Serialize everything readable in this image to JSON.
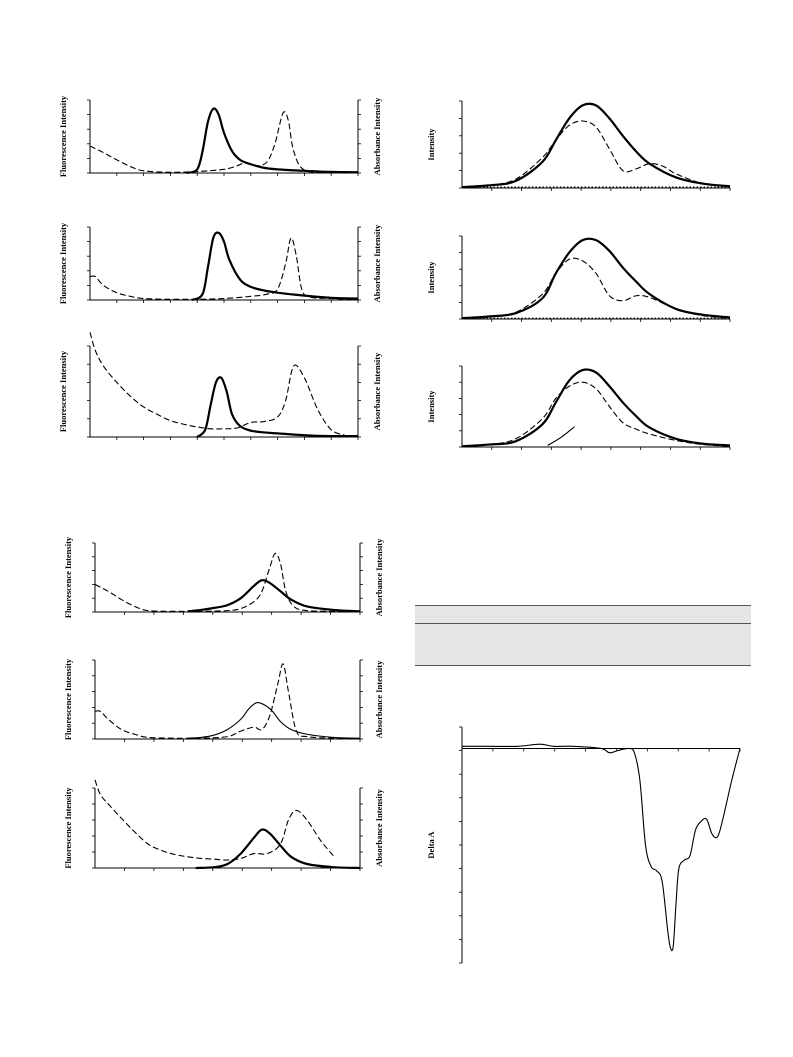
{
  "labels": {
    "fluorescence": "Fluorescence Intensity",
    "absorbance": "Absorbance Intensity",
    "intensity": "Intensity",
    "delta_a": "Delta A"
  },
  "chart_data": [
    {
      "type": "line",
      "id": "left-1",
      "ylabel_left": "Fluorescence Intensity",
      "ylabel_right": "Absorbance Intensity",
      "xlim": [
        0,
        1
      ],
      "ylim": [
        0,
        1
      ],
      "series": [
        {
          "style": "solid",
          "x": [
            0.36,
            0.4,
            0.42,
            0.44,
            0.46,
            0.48,
            0.5,
            0.53,
            0.56,
            0.6,
            0.65,
            0.7,
            0.8,
            0.9,
            1.0
          ],
          "y": [
            0,
            0.05,
            0.3,
            0.7,
            0.88,
            0.8,
            0.55,
            0.3,
            0.18,
            0.12,
            0.07,
            0.05,
            0.03,
            0.015,
            0.01
          ]
        },
        {
          "style": "dashed",
          "x": [
            0,
            0.05,
            0.1,
            0.15,
            0.2,
            0.3,
            0.4,
            0.5,
            0.55,
            0.58,
            0.62,
            0.66,
            0.69,
            0.72,
            0.74,
            0.76,
            0.8,
            0.9,
            1.0
          ],
          "y": [
            0.37,
            0.28,
            0.18,
            0.09,
            0.03,
            0.01,
            0.02,
            0.05,
            0.1,
            0.14,
            0.1,
            0.15,
            0.4,
            0.82,
            0.72,
            0.3,
            0.04,
            0.02,
            0.01
          ]
        }
      ]
    },
    {
      "type": "line",
      "id": "left-2",
      "ylabel_left": "Fluorescence Intensity",
      "ylabel_right": "Absorbance Intensity",
      "xlim": [
        0,
        1
      ],
      "ylim": [
        0,
        1
      ],
      "series": [
        {
          "style": "solid",
          "x": [
            0.38,
            0.42,
            0.44,
            0.46,
            0.48,
            0.5,
            0.52,
            0.56,
            0.6,
            0.65,
            0.7,
            0.8,
            0.9,
            1.0
          ],
          "y": [
            0,
            0.08,
            0.45,
            0.85,
            0.92,
            0.8,
            0.55,
            0.28,
            0.18,
            0.13,
            0.1,
            0.06,
            0.03,
            0.02
          ]
        },
        {
          "style": "dashed",
          "x": [
            0,
            0.02,
            0.05,
            0.1,
            0.15,
            0.2,
            0.3,
            0.4,
            0.5,
            0.6,
            0.66,
            0.7,
            0.73,
            0.75,
            0.77,
            0.79,
            0.82,
            0.9,
            1.0
          ],
          "y": [
            0.32,
            0.32,
            0.2,
            0.1,
            0.05,
            0.02,
            0.01,
            0.01,
            0.02,
            0.05,
            0.08,
            0.15,
            0.5,
            0.85,
            0.6,
            0.15,
            0.04,
            0.02,
            0.01
          ]
        }
      ]
    },
    {
      "type": "line",
      "id": "left-3",
      "ylabel_left": "Fluorescence Intensity",
      "ylabel_right": "Absorbance Intensity",
      "xlim": [
        0,
        1
      ],
      "ylim": [
        0,
        1
      ],
      "series": [
        {
          "style": "solid",
          "x": [
            0.4,
            0.43,
            0.45,
            0.47,
            0.49,
            0.51,
            0.53,
            0.56,
            0.6,
            0.65,
            0.7,
            0.8,
            0.9,
            1.0
          ],
          "y": [
            0,
            0.08,
            0.35,
            0.6,
            0.65,
            0.5,
            0.25,
            0.12,
            0.07,
            0.05,
            0.04,
            0.02,
            0.01,
            0.01
          ]
        },
        {
          "style": "dashed",
          "x": [
            0,
            0.02,
            0.05,
            0.1,
            0.15,
            0.2,
            0.25,
            0.3,
            0.35,
            0.4,
            0.45,
            0.5,
            0.55,
            0.6,
            0.65,
            0.7,
            0.73,
            0.76,
            0.8,
            0.85,
            0.9,
            0.95
          ],
          "y": [
            1.15,
            0.95,
            0.78,
            0.6,
            0.45,
            0.33,
            0.25,
            0.18,
            0.14,
            0.11,
            0.09,
            0.09,
            0.1,
            0.16,
            0.17,
            0.22,
            0.4,
            0.78,
            0.65,
            0.3,
            0.08,
            0.02
          ]
        }
      ]
    },
    {
      "type": "line",
      "id": "right-1",
      "ylabel": "Intensity",
      "xlim": [
        0,
        1
      ],
      "ylim": [
        0,
        1
      ],
      "series": [
        {
          "style": "solid",
          "x": [
            0,
            0.1,
            0.2,
            0.3,
            0.35,
            0.4,
            0.45,
            0.5,
            0.55,
            0.6,
            0.65,
            0.7,
            0.8,
            0.9,
            1.0
          ],
          "y": [
            0.01,
            0.03,
            0.08,
            0.3,
            0.55,
            0.8,
            0.95,
            0.95,
            0.8,
            0.6,
            0.42,
            0.28,
            0.12,
            0.05,
            0.02
          ]
        },
        {
          "style": "dashed",
          "x": [
            0,
            0.1,
            0.2,
            0.3,
            0.35,
            0.4,
            0.45,
            0.5,
            0.55,
            0.6,
            0.65,
            0.7,
            0.75,
            0.8,
            0.9,
            1.0
          ],
          "y": [
            0.01,
            0.03,
            0.1,
            0.35,
            0.55,
            0.72,
            0.77,
            0.7,
            0.45,
            0.2,
            0.22,
            0.28,
            0.25,
            0.16,
            0.05,
            0.02
          ]
        },
        {
          "style": "dotted",
          "x": [
            0,
            1.0
          ],
          "y": [
            0.01,
            0.01
          ]
        }
      ]
    },
    {
      "type": "line",
      "id": "right-2",
      "ylabel": "Intensity",
      "xlim": [
        0,
        1
      ],
      "ylim": [
        0,
        1
      ],
      "series": [
        {
          "style": "solid",
          "x": [
            0,
            0.1,
            0.2,
            0.3,
            0.35,
            0.4,
            0.45,
            0.5,
            0.55,
            0.6,
            0.65,
            0.7,
            0.8,
            0.9,
            1.0
          ],
          "y": [
            0.01,
            0.03,
            0.07,
            0.25,
            0.55,
            0.8,
            0.95,
            0.95,
            0.82,
            0.62,
            0.45,
            0.3,
            0.12,
            0.05,
            0.02
          ]
        },
        {
          "style": "dashed",
          "x": [
            0,
            0.1,
            0.2,
            0.3,
            0.35,
            0.4,
            0.45,
            0.5,
            0.55,
            0.6,
            0.65,
            0.7,
            0.8,
            0.9,
            1.0
          ],
          "y": [
            0.01,
            0.03,
            0.08,
            0.3,
            0.55,
            0.72,
            0.7,
            0.55,
            0.28,
            0.22,
            0.28,
            0.26,
            0.12,
            0.04,
            0.01
          ]
        },
        {
          "style": "dotted",
          "x": [
            0,
            1.0
          ],
          "y": [
            0.01,
            0.01
          ]
        }
      ]
    },
    {
      "type": "line",
      "id": "right-3",
      "ylabel": "Intensity",
      "xlim": [
        0,
        1
      ],
      "ylim": [
        0,
        1
      ],
      "series": [
        {
          "style": "solid",
          "x": [
            0,
            0.1,
            0.2,
            0.3,
            0.35,
            0.4,
            0.45,
            0.5,
            0.55,
            0.6,
            0.65,
            0.7,
            0.8,
            0.9,
            1.0
          ],
          "y": [
            0.01,
            0.03,
            0.07,
            0.28,
            0.55,
            0.82,
            0.95,
            0.92,
            0.75,
            0.55,
            0.38,
            0.24,
            0.1,
            0.04,
            0.02
          ]
        },
        {
          "style": "dashed",
          "x": [
            0,
            0.1,
            0.2,
            0.3,
            0.35,
            0.4,
            0.45,
            0.5,
            0.55,
            0.6,
            0.65,
            0.7,
            0.8,
            0.9,
            1.0
          ],
          "y": [
            0.01,
            0.03,
            0.1,
            0.35,
            0.6,
            0.75,
            0.8,
            0.72,
            0.5,
            0.3,
            0.22,
            0.16,
            0.08,
            0.03,
            0.01
          ]
        },
        {
          "style": "thin",
          "x": [
            0.32,
            0.37,
            0.42
          ],
          "y": [
            0.02,
            0.12,
            0.25
          ]
        }
      ]
    },
    {
      "type": "line",
      "id": "lower-left-1",
      "ylabel_left": "Fluorescence Intensity",
      "ylabel_right": "Absorbance Intensity",
      "xlim": [
        0,
        1
      ],
      "ylim": [
        0,
        1
      ],
      "series": [
        {
          "style": "solid",
          "x": [
            0.35,
            0.4,
            0.45,
            0.5,
            0.55,
            0.6,
            0.63,
            0.66,
            0.7,
            0.74,
            0.8,
            0.9,
            1.0
          ],
          "y": [
            0.01,
            0.03,
            0.06,
            0.1,
            0.2,
            0.38,
            0.46,
            0.42,
            0.3,
            0.18,
            0.08,
            0.03,
            0.01
          ]
        },
        {
          "style": "dashed",
          "x": [
            0,
            0.05,
            0.1,
            0.15,
            0.2,
            0.3,
            0.4,
            0.5,
            0.55,
            0.6,
            0.63,
            0.66,
            0.68,
            0.7,
            0.72,
            0.75,
            0.8,
            0.9,
            1.0
          ],
          "y": [
            0.4,
            0.3,
            0.18,
            0.08,
            0.02,
            0.01,
            0.01,
            0.02,
            0.05,
            0.15,
            0.3,
            0.65,
            0.85,
            0.7,
            0.3,
            0.08,
            0.02,
            0.01,
            0.0
          ]
        }
      ]
    },
    {
      "type": "line",
      "id": "lower-left-2",
      "ylabel_left": "Fluorescence Intensity",
      "ylabel_right": "Absorbance Intensity",
      "xlim": [
        0,
        1
      ],
      "ylim": [
        0,
        1
      ],
      "series": [
        {
          "style": "thin",
          "x": [
            0.35,
            0.4,
            0.45,
            0.5,
            0.55,
            0.58,
            0.61,
            0.64,
            0.67,
            0.7,
            0.74,
            0.8,
            0.9,
            1.0
          ],
          "y": [
            0.01,
            0.02,
            0.05,
            0.12,
            0.25,
            0.38,
            0.46,
            0.43,
            0.35,
            0.22,
            0.12,
            0.06,
            0.02,
            0.01
          ]
        },
        {
          "style": "dashed",
          "x": [
            0,
            0.02,
            0.05,
            0.1,
            0.15,
            0.2,
            0.3,
            0.4,
            0.5,
            0.55,
            0.6,
            0.63,
            0.66,
            0.69,
            0.71,
            0.73,
            0.76,
            0.8,
            0.9,
            1.0
          ],
          "y": [
            0.35,
            0.35,
            0.25,
            0.12,
            0.06,
            0.02,
            0.01,
            0.01,
            0.03,
            0.1,
            0.15,
            0.12,
            0.3,
            0.7,
            0.95,
            0.6,
            0.1,
            0.03,
            0.01,
            0.0
          ]
        }
      ]
    },
    {
      "type": "line",
      "id": "lower-left-3",
      "ylabel_left": "Fluorescence Intensity",
      "ylabel_right": "Absorbance Intensity",
      "xlim": [
        0,
        1
      ],
      "ylim": [
        0,
        1
      ],
      "series": [
        {
          "style": "solid",
          "x": [
            0.38,
            0.45,
            0.5,
            0.55,
            0.6,
            0.63,
            0.66,
            0.7,
            0.74,
            0.8,
            0.9,
            1.0
          ],
          "y": [
            0.0,
            0.01,
            0.05,
            0.18,
            0.38,
            0.48,
            0.43,
            0.28,
            0.14,
            0.05,
            0.01,
            0.0
          ]
        },
        {
          "style": "dashed",
          "x": [
            0,
            0.02,
            0.05,
            0.1,
            0.15,
            0.2,
            0.25,
            0.3,
            0.35,
            0.4,
            0.45,
            0.5,
            0.55,
            0.6,
            0.65,
            0.7,
            0.73,
            0.76,
            0.8,
            0.85,
            0.9
          ],
          "y": [
            1.1,
            0.92,
            0.8,
            0.62,
            0.45,
            0.3,
            0.22,
            0.17,
            0.14,
            0.12,
            0.11,
            0.1,
            0.12,
            0.18,
            0.18,
            0.3,
            0.6,
            0.72,
            0.6,
            0.35,
            0.15
          ]
        }
      ]
    },
    {
      "type": "line",
      "id": "delta-a",
      "ylabel": "Delta A",
      "xlim": [
        0,
        1
      ],
      "ylim": [
        -1,
        0.1
      ],
      "series": [
        {
          "style": "thin",
          "x": [
            0,
            0.1,
            0.2,
            0.28,
            0.33,
            0.4,
            0.5,
            0.53,
            0.56,
            0.6,
            0.62,
            0.64,
            0.66,
            0.68,
            0.7,
            0.72,
            0.74,
            0.75,
            0.76,
            0.77,
            0.78,
            0.8,
            0.82,
            0.84,
            0.86,
            0.88,
            0.9,
            0.92,
            0.94,
            0.97,
            1.0
          ],
          "y": [
            0.01,
            0.01,
            0.01,
            0.02,
            0.01,
            0.01,
            0.0,
            -0.02,
            -0.01,
            0.0,
            -0.02,
            -0.15,
            -0.45,
            -0.55,
            -0.57,
            -0.62,
            -0.85,
            -0.93,
            -0.92,
            -0.72,
            -0.56,
            -0.52,
            -0.5,
            -0.38,
            -0.34,
            -0.33,
            -0.4,
            -0.41,
            -0.32,
            -0.15,
            0.0
          ]
        }
      ]
    }
  ]
}
